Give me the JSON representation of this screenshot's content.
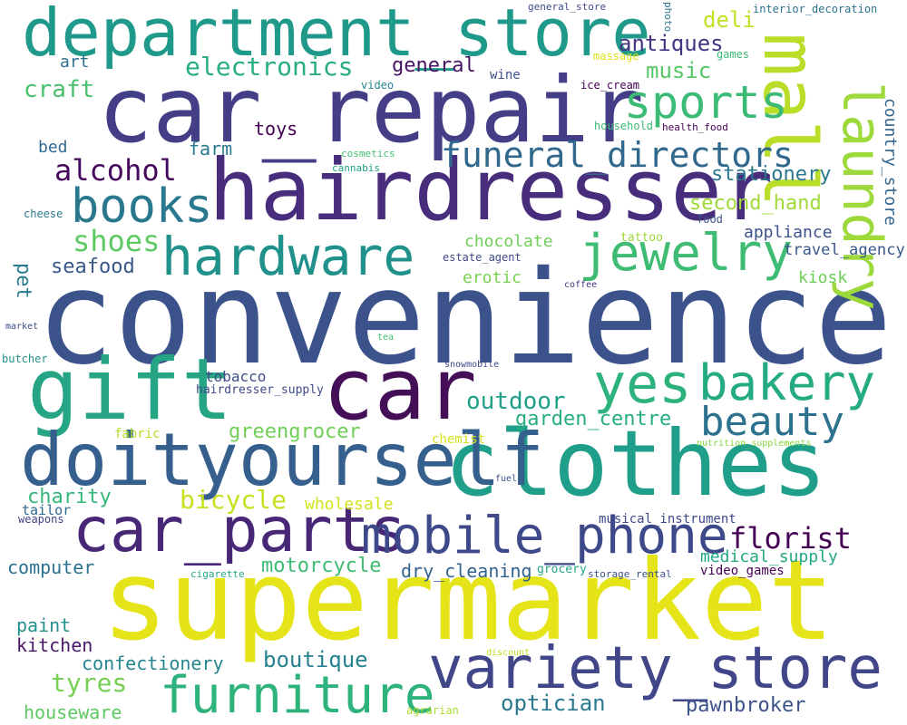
{
  "words": [
    {
      "text": "convenience",
      "color": "#3b528b"
    },
    {
      "text": "supermarket",
      "color": "#e5e419"
    },
    {
      "text": "car_repair",
      "color": "#433e85"
    },
    {
      "text": "hairdresser",
      "color": "#472d7b"
    },
    {
      "text": "clothes",
      "color": "#1f9e89"
    },
    {
      "text": "department_store",
      "color": "#1f9a8a"
    },
    {
      "text": "car",
      "color": "#440f56"
    },
    {
      "text": "gift",
      "color": "#25a584"
    },
    {
      "text": "doityourself",
      "color": "#35608d"
    },
    {
      "text": "car_parts",
      "color": "#482777"
    },
    {
      "text": "mobile_phone",
      "color": "#3e4989"
    },
    {
      "text": "variety_store",
      "color": "#404688"
    },
    {
      "text": "furniture",
      "color": "#2eb37c"
    },
    {
      "text": "mall",
      "color": "#b8de29"
    },
    {
      "text": "laundry",
      "color": "#9dd93b"
    },
    {
      "text": "books",
      "color": "#2a788e"
    },
    {
      "text": "hardware",
      "color": "#21918c"
    },
    {
      "text": "jewelry",
      "color": "#3fbc73"
    },
    {
      "text": "sports",
      "color": "#3bbb75"
    },
    {
      "text": "bakery",
      "color": "#25ab82"
    },
    {
      "text": "beauty",
      "color": "#2c728e"
    },
    {
      "text": "yes",
      "color": "#2db27d"
    },
    {
      "text": "funeral_directors",
      "color": "#31688e"
    },
    {
      "text": "alcohol",
      "color": "#46085c"
    },
    {
      "text": "shoes",
      "color": "#5ec962"
    },
    {
      "text": "florist",
      "color": "#440154"
    },
    {
      "text": "electronics",
      "color": "#29af7f"
    },
    {
      "text": "antiques",
      "color": "#453581"
    },
    {
      "text": "deli",
      "color": "#c2df23"
    },
    {
      "text": "music",
      "color": "#56c667"
    },
    {
      "text": "general",
      "color": "#471365"
    },
    {
      "text": "craft",
      "color": "#4ac16d"
    },
    {
      "text": "art",
      "color": "#2d708e"
    },
    {
      "text": "toys",
      "color": "#440154"
    },
    {
      "text": "farm",
      "color": "#297b8e"
    },
    {
      "text": "bed",
      "color": "#306a8e"
    },
    {
      "text": "stationery",
      "color": "#2a788e"
    },
    {
      "text": "second_hand",
      "color": "#a0da39"
    },
    {
      "text": "country_store",
      "color": "#32648e"
    },
    {
      "text": "seafood",
      "color": "#38588c"
    },
    {
      "text": "pet",
      "color": "#287c8e"
    },
    {
      "text": "chocolate",
      "color": "#6ece58"
    },
    {
      "text": "appliance",
      "color": "#3b528b"
    },
    {
      "text": "travel_agency",
      "color": "#39568c"
    },
    {
      "text": "erotic",
      "color": "#7ad151"
    },
    {
      "text": "kiosk",
      "color": "#6ece58"
    },
    {
      "text": "outdoor",
      "color": "#1fa088"
    },
    {
      "text": "garden_centre",
      "color": "#28ae80"
    },
    {
      "text": "greengrocer",
      "color": "#70cf57"
    },
    {
      "text": "tobacco",
      "color": "#3e4c8a"
    },
    {
      "text": "hairdresser_supply",
      "color": "#3e4989"
    },
    {
      "text": "charity",
      "color": "#35b779"
    },
    {
      "text": "bicycle",
      "color": "#c8e020"
    },
    {
      "text": "wholesale",
      "color": "#d2e21b"
    },
    {
      "text": "tailor",
      "color": "#31688e"
    },
    {
      "text": "weapons",
      "color": "#414487"
    },
    {
      "text": "computer",
      "color": "#2c728e"
    },
    {
      "text": "motorcycle",
      "color": "#3fbc73"
    },
    {
      "text": "dry_cleaning",
      "color": "#33638d"
    },
    {
      "text": "musical_instrument",
      "color": "#3e4989"
    },
    {
      "text": "medical_supply",
      "color": "#22a785"
    },
    {
      "text": "video_games",
      "color": "#440154"
    },
    {
      "text": "paint",
      "color": "#21918c"
    },
    {
      "text": "kitchen",
      "color": "#481769"
    },
    {
      "text": "confectionery",
      "color": "#25858e"
    },
    {
      "text": "boutique",
      "color": "#26828e"
    },
    {
      "text": "tyres",
      "color": "#75d054"
    },
    {
      "text": "houseware",
      "color": "#5ec962"
    },
    {
      "text": "optician",
      "color": "#2a788e"
    },
    {
      "text": "pawnbroker",
      "color": "#3b528b"
    },
    {
      "text": "general_store",
      "color": "#3e4989"
    },
    {
      "text": "photo",
      "color": "#2c728e"
    },
    {
      "text": "interior_decoration",
      "color": "#2c728e"
    },
    {
      "text": "games",
      "color": "#3bbb75"
    },
    {
      "text": "massage",
      "color": "#dde318"
    },
    {
      "text": "wine",
      "color": "#3b528b"
    },
    {
      "text": "video",
      "color": "#24868e"
    },
    {
      "text": "ice_cream",
      "color": "#440154"
    },
    {
      "text": "household",
      "color": "#3bbb75"
    },
    {
      "text": "health_food",
      "color": "#440154"
    },
    {
      "text": "cosmetics",
      "color": "#42be71"
    },
    {
      "text": "cannabis",
      "color": "#1f9e89"
    },
    {
      "text": "cheese",
      "color": "#2a788e"
    },
    {
      "text": "food",
      "color": "#3b528b"
    },
    {
      "text": "tattoo",
      "color": "#9dd93b"
    },
    {
      "text": "estate_agent",
      "color": "#3e4989"
    },
    {
      "text": "coffee",
      "color": "#46337e"
    },
    {
      "text": "market",
      "color": "#3e4989"
    },
    {
      "text": "tea",
      "color": "#42be71"
    },
    {
      "text": "butcher",
      "color": "#21918c"
    },
    {
      "text": "snowmobile",
      "color": "#3e4989"
    },
    {
      "text": "fabric",
      "color": "#b5de2b"
    },
    {
      "text": "chemist",
      "color": "#d8e219"
    },
    {
      "text": "nutrition_supplements",
      "color": "#8bd646"
    },
    {
      "text": "fuel",
      "color": "#3b528b"
    },
    {
      "text": "cigarette",
      "color": "#22a785"
    },
    {
      "text": "grocery",
      "color": "#22a785"
    },
    {
      "text": "storage_rental",
      "color": "#3b528b"
    },
    {
      "text": "discount",
      "color": "#c2df23"
    },
    {
      "text": "agrarian",
      "color": "#addc30"
    }
  ]
}
